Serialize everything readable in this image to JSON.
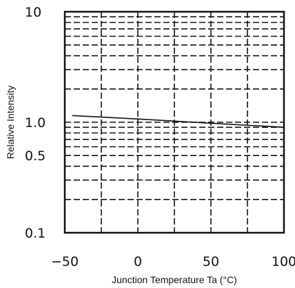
{
  "chart_data": {
    "type": "line",
    "title": "",
    "xlabel": "Junction Temperature Ta (°C)",
    "ylabel": "Relative Intensity",
    "xlim": [
      -50,
      100
    ],
    "ylim": [
      0.1,
      10
    ],
    "y_scale": "log",
    "x_ticks": [
      -50,
      0,
      50,
      100
    ],
    "x_tick_labels": [
      "−50",
      "0",
      "50",
      "100"
    ],
    "y_ticks": [
      10,
      1.0,
      0.5,
      0.1
    ],
    "y_tick_labels": [
      "10",
      "1.0",
      "0.5",
      "0.1"
    ],
    "grid": true,
    "legend": "none",
    "series": [
      {
        "x": [
          -45,
          0,
          50,
          100
        ],
        "y": [
          1.15,
          1.07,
          0.98,
          0.9
        ]
      }
    ]
  },
  "colors": {
    "line": "#111111",
    "grid": "#111111",
    "background": "#ffffff"
  }
}
